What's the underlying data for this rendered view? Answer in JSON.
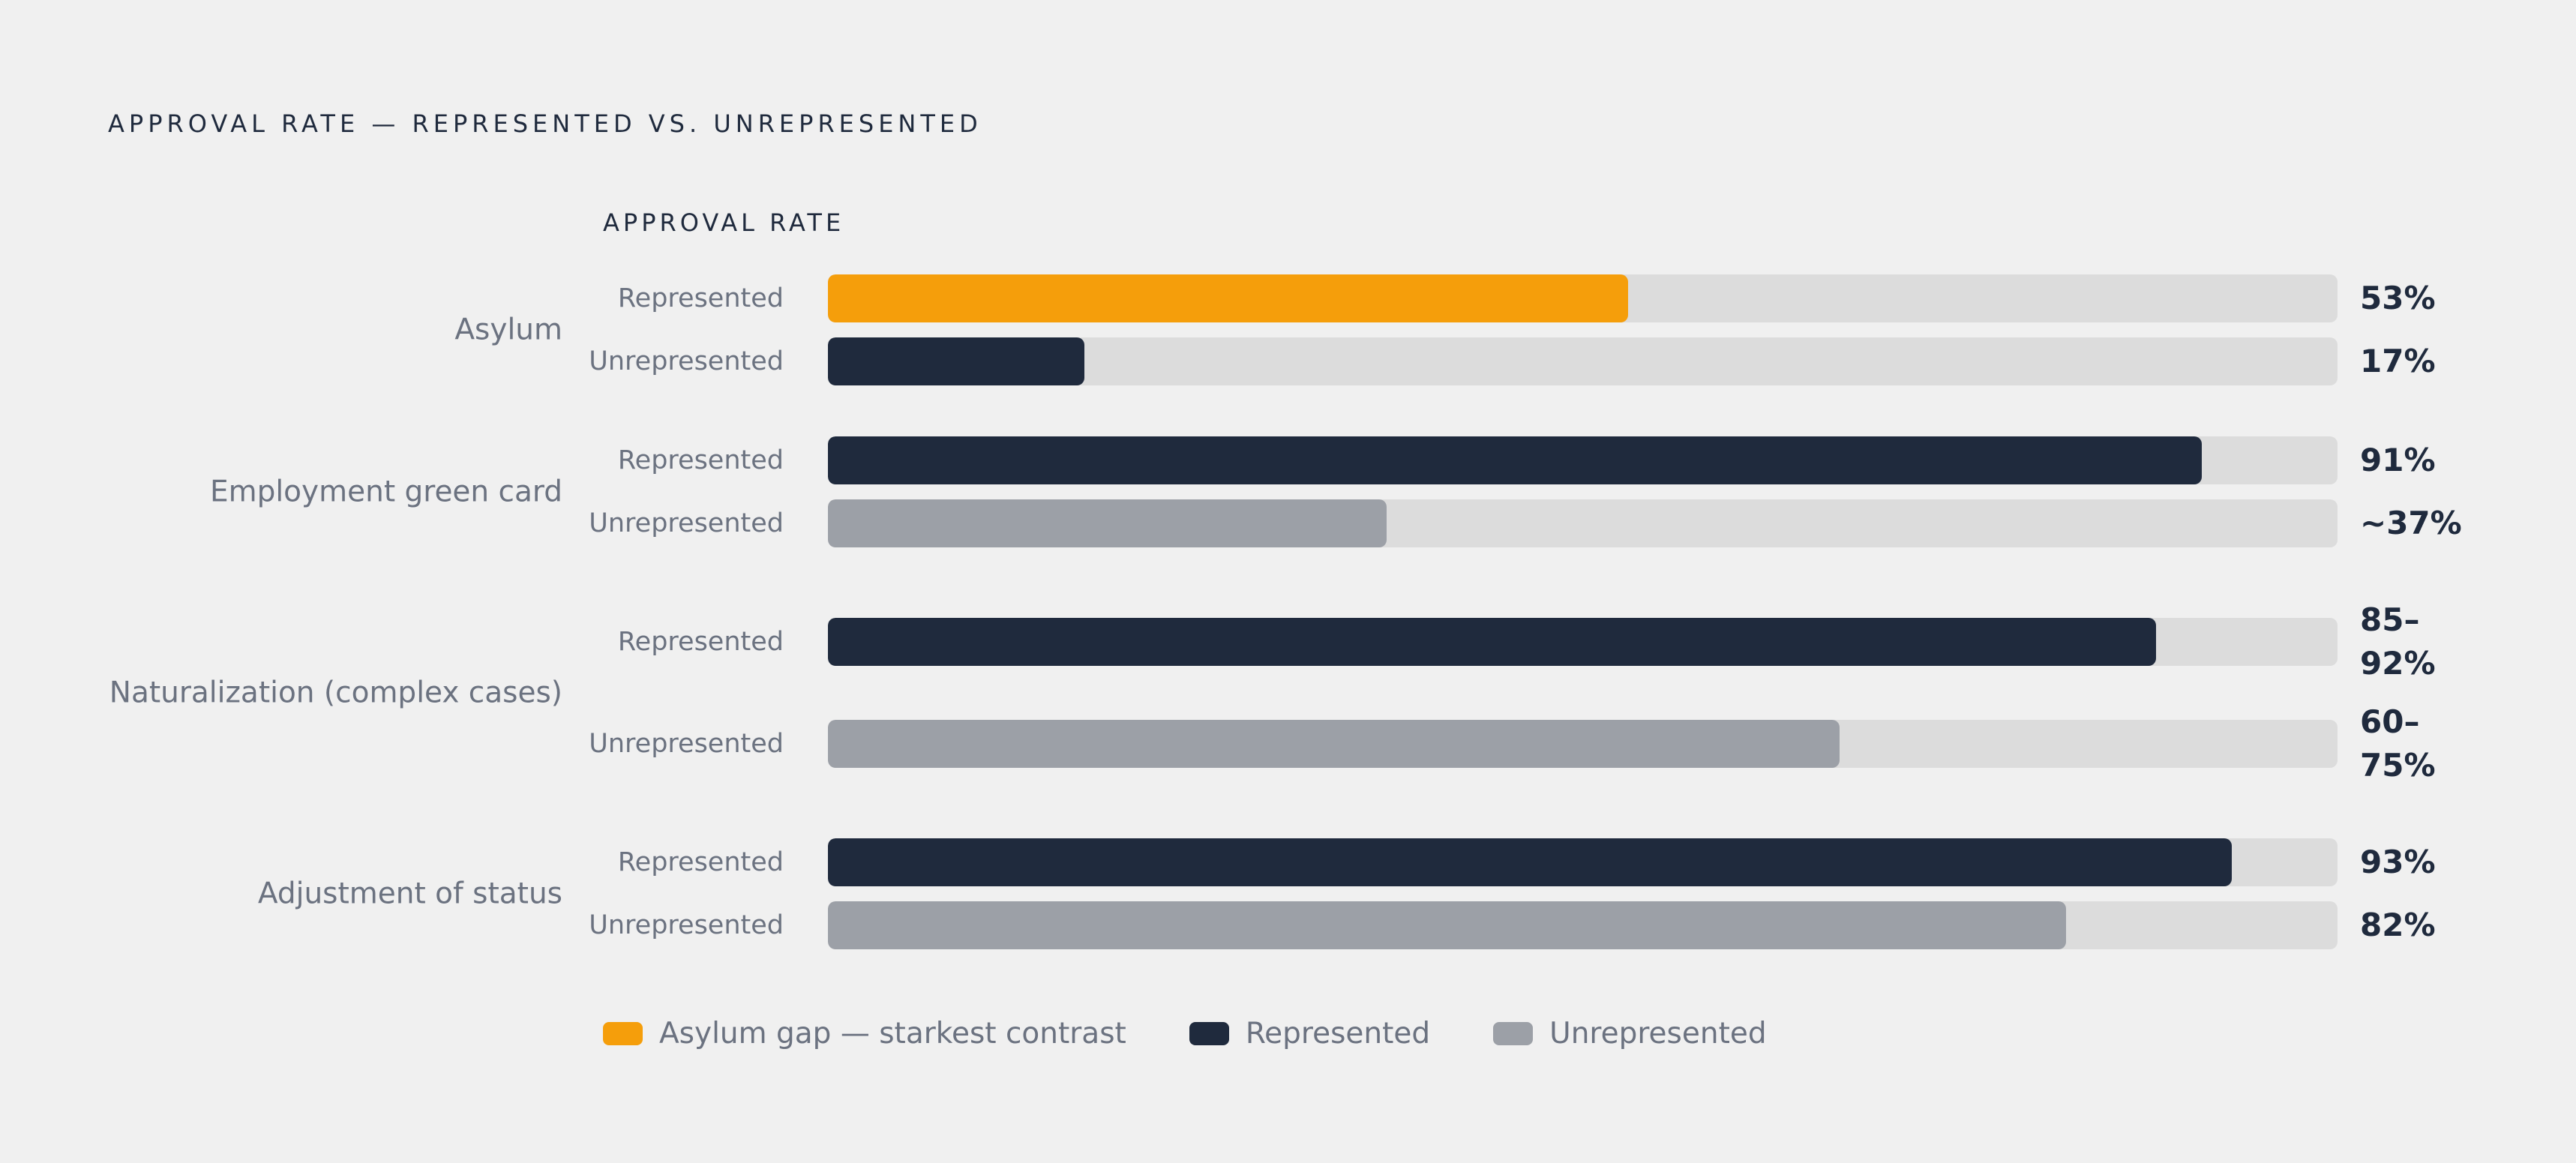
{
  "chart_data": {
    "type": "bar",
    "orientation": "horizontal",
    "title": "APPROVAL RATE — REPRESENTED VS. UNREPRESENTED",
    "axis_label": "APPROVAL RATE",
    "xlim": [
      0,
      100
    ],
    "grid": false,
    "legend_placement": "bottom-left",
    "groups": [
      {
        "label": "Asylum",
        "rows": [
          {
            "label": "Represented",
            "value": 53,
            "display": "53%",
            "color": "#f59e0b"
          },
          {
            "label": "Unrepresented",
            "value": 17,
            "display": "17%",
            "color": "#1f2a3d"
          }
        ]
      },
      {
        "label": "Employment green card",
        "rows": [
          {
            "label": "Represented",
            "value": 91,
            "display": "91%",
            "color": "#1f2a3d"
          },
          {
            "label": "Unrepresented",
            "value": 37,
            "display": "~37%",
            "color": "#9ca0a7"
          }
        ]
      },
      {
        "label": "Naturalization (complex cases)",
        "rows": [
          {
            "label": "Represented",
            "value": 88,
            "display": [
              "85–",
              "92%"
            ],
            "color": "#1f2a3d"
          },
          {
            "label": "Unrepresented",
            "value": 67,
            "display": [
              "60–",
              "75%"
            ],
            "color": "#9ca0a7"
          }
        ]
      },
      {
        "label": "Adjustment of status",
        "rows": [
          {
            "label": "Represented",
            "value": 93,
            "display": "93%",
            "color": "#1f2a3d"
          },
          {
            "label": "Unrepresented",
            "value": 82,
            "display": "82%",
            "color": "#9ca0a7"
          }
        ]
      }
    ],
    "legend": [
      {
        "label": "Asylum gap — starkest contrast",
        "color": "#f59e0b"
      },
      {
        "label": "Represented",
        "color": "#1f2a3d"
      },
      {
        "label": "Unrepresented",
        "color": "#9ca0a7"
      }
    ]
  }
}
